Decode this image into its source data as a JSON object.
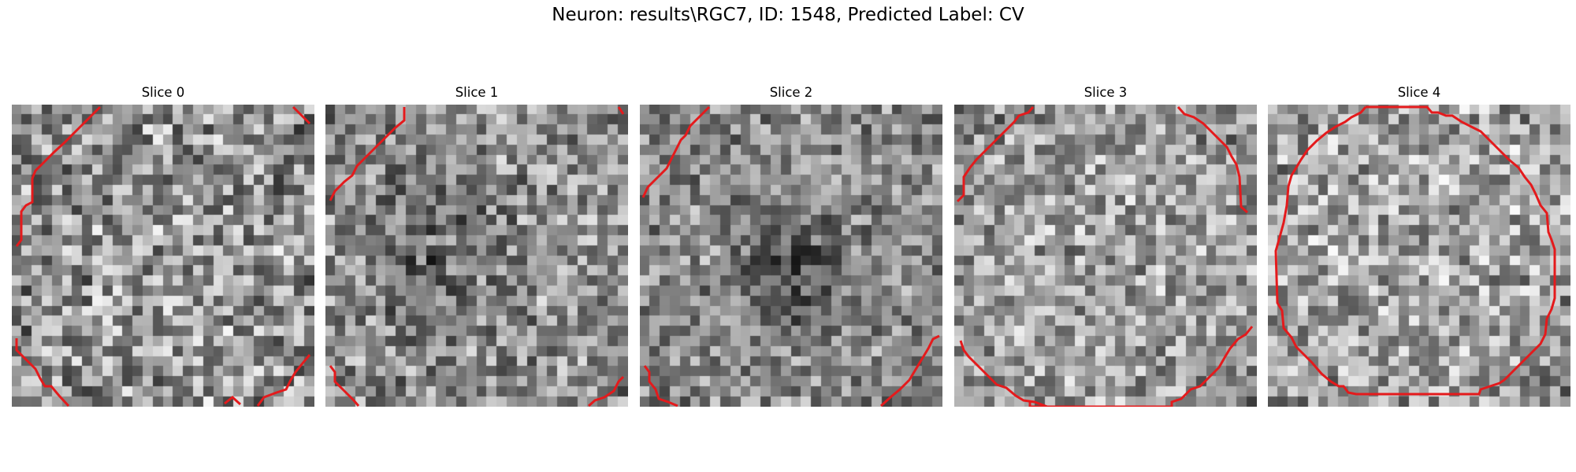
{
  "figure": {
    "title": "Neuron: results\\RGC7, ID: 1548, Predicted Label: CV"
  },
  "colors": {
    "contour": "#e41a1c",
    "background": "#ffffff"
  },
  "panels": [
    {
      "title": "Slice 0"
    },
    {
      "title": "Slice 1"
    },
    {
      "title": "Slice 2"
    },
    {
      "title": "Slice 3"
    },
    {
      "title": "Slice 4"
    }
  ]
}
